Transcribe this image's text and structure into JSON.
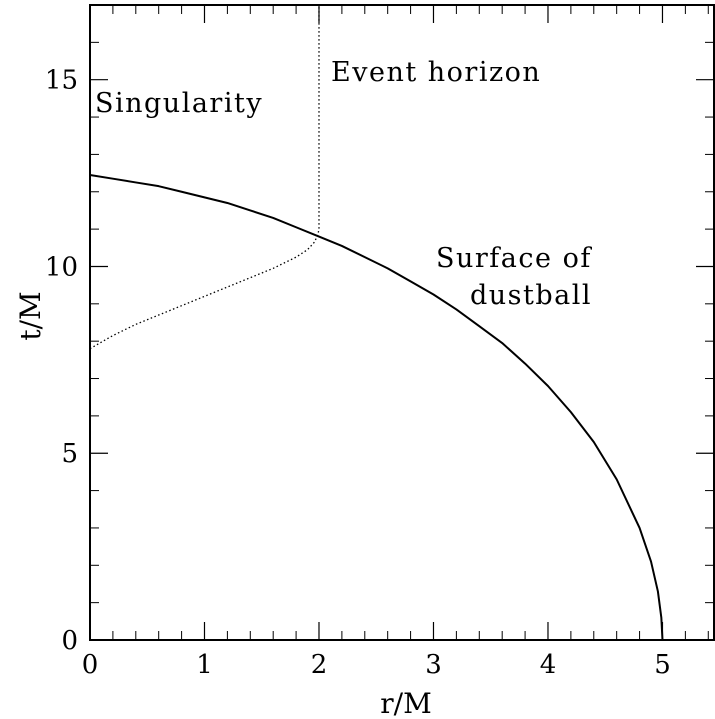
{
  "chart_data": {
    "type": "line",
    "xlabel": "r/M",
    "ylabel": "t/M",
    "xlim": [
      0,
      5.45
    ],
    "ylim": [
      0,
      17
    ],
    "x_ticks": [
      0,
      1,
      2,
      3,
      4,
      5
    ],
    "y_ticks": [
      0,
      5,
      10,
      15
    ],
    "x_minor_step": 0.2,
    "y_minor_step": 1,
    "grid": false,
    "series": [
      {
        "style": "solid",
        "color": "#000000",
        "x": [
          5.0,
          4.99,
          4.96,
          4.9,
          4.8,
          4.6,
          4.4,
          4.2,
          4.0,
          3.8,
          3.6,
          3.4,
          3.2,
          3.0,
          2.8,
          2.6,
          2.4,
          2.2,
          2.0,
          1.8,
          1.6,
          1.4,
          1.2,
          1.0,
          0.8,
          0.6,
          0.4,
          0.2,
          0.0
        ],
        "y": [
          0.0,
          0.6,
          1.3,
          2.1,
          3.0,
          4.3,
          5.3,
          6.1,
          6.8,
          7.4,
          7.95,
          8.4,
          8.85,
          9.25,
          9.6,
          9.95,
          10.25,
          10.55,
          10.8,
          11.05,
          11.3,
          11.5,
          11.7,
          11.85,
          12.0,
          12.15,
          12.25,
          12.35,
          12.45
        ]
      },
      {
        "style": "dotted",
        "color": "#000000",
        "x": [
          0.0,
          0.2,
          0.4,
          0.6,
          0.8,
          1.0,
          1.2,
          1.4,
          1.6,
          1.8,
          1.9,
          1.96,
          1.99,
          2.0,
          2.0
        ],
        "y": [
          7.8,
          8.15,
          8.45,
          8.7,
          8.95,
          9.2,
          9.45,
          9.7,
          9.95,
          10.25,
          10.45,
          10.65,
          10.85,
          11.0,
          17.0
        ]
      }
    ],
    "annotations": [
      "Singularity",
      "Event horizon",
      "Surface of",
      "dustball"
    ]
  }
}
